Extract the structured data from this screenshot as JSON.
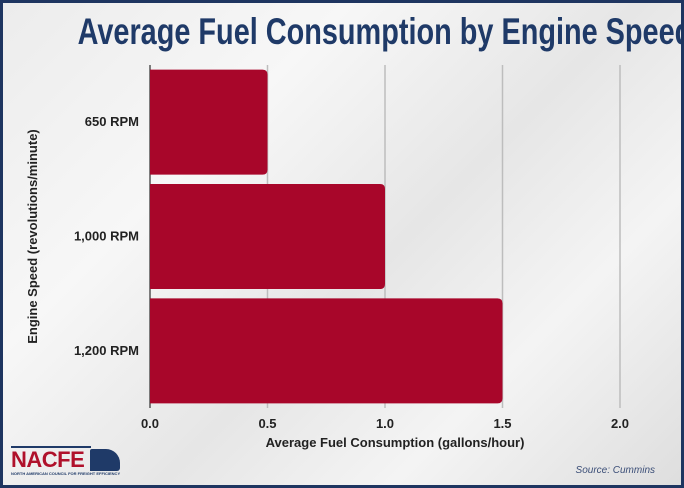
{
  "chart_data": {
    "type": "bar",
    "orientation": "horizontal",
    "title": "Average Fuel Consumption by Engine Speed",
    "xlabel": "Average Fuel Consumption (gallons/hour)",
    "ylabel": "Engine Speed (revolutions/minute)",
    "categories": [
      "650 RPM",
      "1,000 RPM",
      "1,200 RPM"
    ],
    "values": [
      0.5,
      1.0,
      1.5
    ],
    "xlim": [
      0,
      2.0
    ],
    "xticks": [
      "0.0",
      "0.5",
      "1.0",
      "1.5",
      "2.0"
    ],
    "grid": true,
    "bar_color": "#a8062a"
  },
  "source": "Source: Cummins",
  "logo": {
    "text": "NACFE",
    "subtitle": "NORTH AMERICAN COUNCIL FOR FREIGHT EFFICIENCY"
  }
}
